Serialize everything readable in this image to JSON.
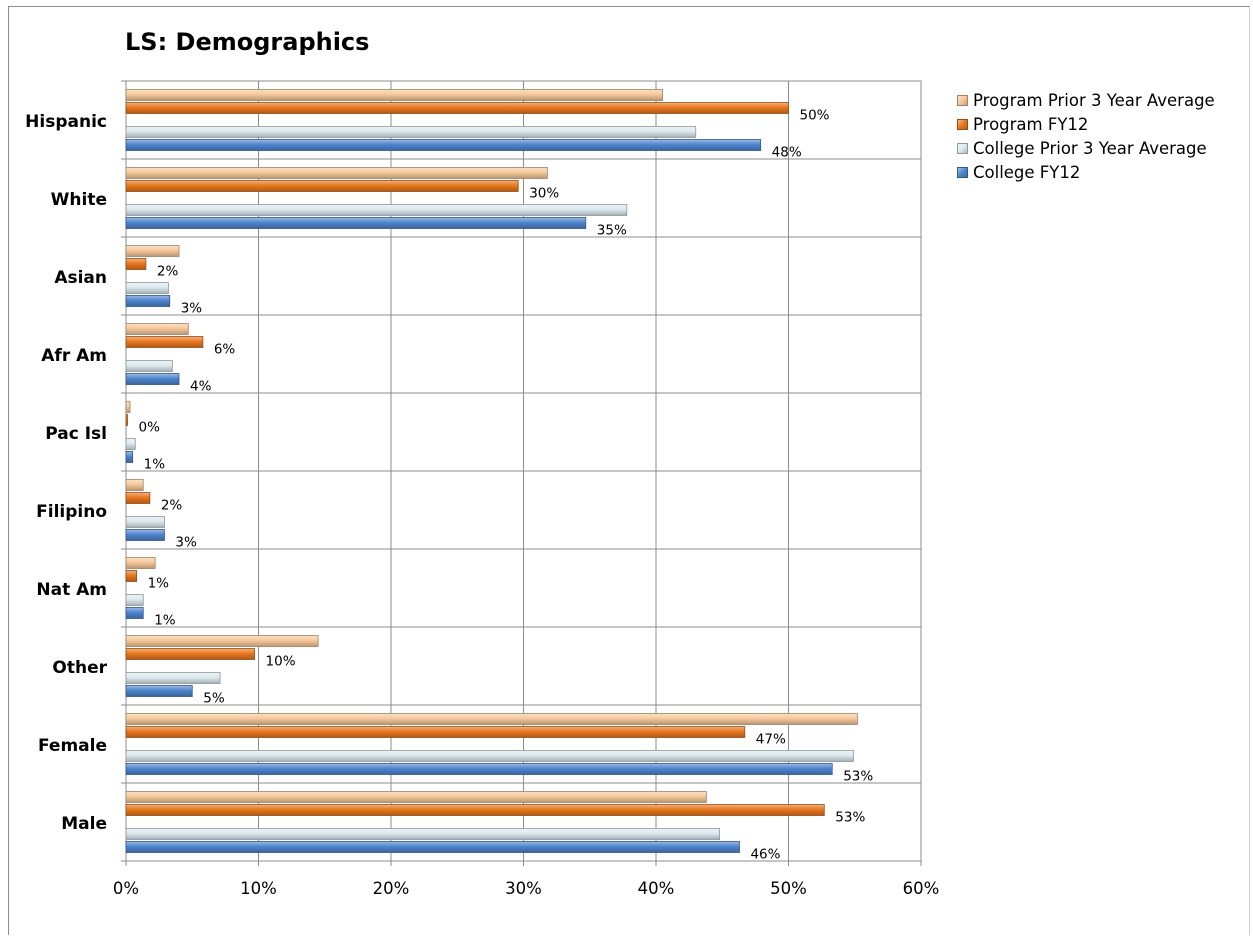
{
  "chart_data": {
    "type": "bar",
    "orientation": "horizontal",
    "title": "LS: Demographics",
    "xlabel": "",
    "ylabel": "",
    "categories": [
      "Hispanic",
      "White",
      "Asian",
      "Afr Am",
      "Pac Isl",
      "Filipino",
      "Nat Am",
      "Other",
      "Female",
      "Male"
    ],
    "xlim": [
      0,
      0.6
    ],
    "x_ticks": [
      "0%",
      "10%",
      "20%",
      "30%",
      "40%",
      "50%",
      "60%"
    ],
    "grid": true,
    "legend_position": "right",
    "series": [
      {
        "name": "Program Prior 3 Year Average",
        "color": "#f6c89a",
        "values": [
          0.405,
          0.318,
          0.04,
          0.047,
          0.003,
          0.013,
          0.022,
          0.145,
          0.552,
          0.438
        ],
        "labels": [
          "",
          "",
          "",
          "",
          "",
          "",
          "",
          "",
          "",
          ""
        ]
      },
      {
        "name": "Program FY12",
        "color": "#e8771e",
        "values": [
          0.5,
          0.296,
          0.015,
          0.058,
          0.001,
          0.018,
          0.008,
          0.097,
          0.467,
          0.527
        ],
        "labels": [
          "50%",
          "30%",
          "2%",
          "6%",
          "0%",
          "2%",
          "1%",
          "10%",
          "47%",
          "53%"
        ]
      },
      {
        "name": "College Prior 3 Year Average",
        "color": "#dbe9ef",
        "values": [
          0.43,
          0.378,
          0.032,
          0.035,
          0.007,
          0.029,
          0.013,
          0.071,
          0.549,
          0.448
        ],
        "labels": [
          "",
          "",
          "",
          "",
          "",
          "",
          "",
          "",
          "",
          ""
        ]
      },
      {
        "name": "College FY12",
        "color": "#4f86cf",
        "values": [
          0.479,
          0.347,
          0.033,
          0.04,
          0.005,
          0.029,
          0.013,
          0.05,
          0.533,
          0.463
        ],
        "labels": [
          "48%",
          "35%",
          "3%",
          "4%",
          "1%",
          "3%",
          "1%",
          "5%",
          "53%",
          "46%"
        ]
      }
    ]
  }
}
